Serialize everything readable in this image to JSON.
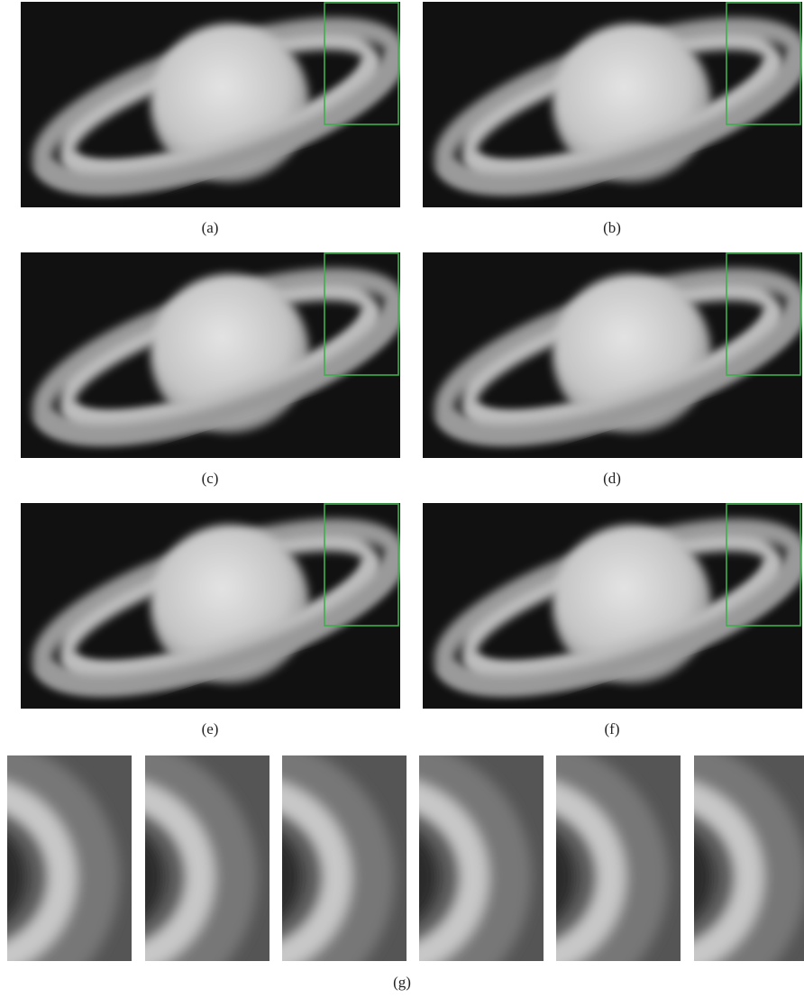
{
  "figure": {
    "panels": [
      {
        "label": "(a)"
      },
      {
        "label": "(b)"
      },
      {
        "label": "(c)"
      },
      {
        "label": "(d)"
      },
      {
        "label": "(e)"
      },
      {
        "label": "(f)"
      }
    ],
    "crops_label": "(g)"
  }
}
